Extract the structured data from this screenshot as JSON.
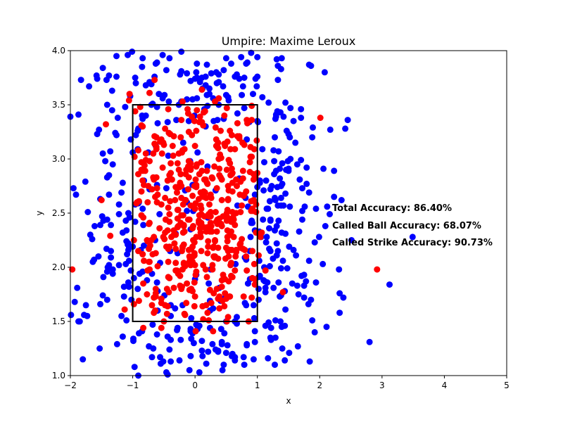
{
  "chart_data": {
    "type": "scatter",
    "title": "Umpire: Maxime Leroux",
    "xlabel": "x",
    "ylabel": "y",
    "xlim": [
      -2,
      5
    ],
    "ylim": [
      1.0,
      4.0
    ],
    "x_ticks": [
      -2,
      -1,
      0,
      1,
      2,
      3,
      4,
      5
    ],
    "y_ticks": [
      1.0,
      1.5,
      2.0,
      2.5,
      3.0,
      3.5,
      4.0
    ],
    "x_tick_labels": [
      "−2",
      "−1",
      "0",
      "1",
      "2",
      "3",
      "4",
      "5"
    ],
    "y_tick_labels": [
      "1.0",
      "1.5",
      "2.0",
      "2.5",
      "3.0",
      "3.5",
      "4.0"
    ],
    "grid": false,
    "strike_zone": {
      "x": [
        -1,
        1
      ],
      "y": [
        1.5,
        3.5
      ],
      "color": "#000000"
    },
    "series": [
      {
        "color": "#0000ff",
        "points": []
      },
      {
        "color": "#ff0000",
        "points": []
      }
    ],
    "annotations": [
      "Total Accuracy: 86.40%",
      "Called Ball Accuracy: 68.07%",
      "Called Strike Accuracy: 90.73%"
    ]
  }
}
